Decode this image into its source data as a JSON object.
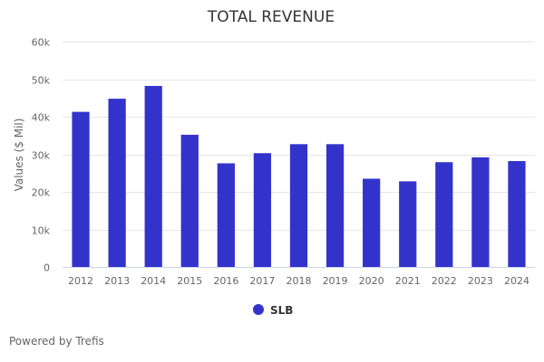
{
  "chart_data": {
    "type": "bar",
    "title": "TOTAL REVENUE",
    "xlabel": "",
    "ylabel": "Values ($ Mil)",
    "categories": [
      "2012",
      "2013",
      "2014",
      "2015",
      "2016",
      "2017",
      "2018",
      "2019",
      "2020",
      "2021",
      "2022",
      "2023",
      "2024"
    ],
    "series": [
      {
        "name": "SLB",
        "color": "#3333CC",
        "values": [
          41300,
          44800,
          48200,
          35200,
          27600,
          30300,
          32700,
          32700,
          23500,
          22800,
          27900,
          29200,
          28200
        ]
      }
    ],
    "ylim": [
      0,
      60000
    ],
    "yticks": [
      0,
      10000,
      20000,
      30000,
      40000,
      50000,
      60000
    ],
    "ytick_labels": [
      "0",
      "10k",
      "20k",
      "30k",
      "40k",
      "50k",
      "60k"
    ],
    "grid": true,
    "legend": "bottom-center"
  },
  "footer": {
    "credit": "Powered by Trefis"
  }
}
